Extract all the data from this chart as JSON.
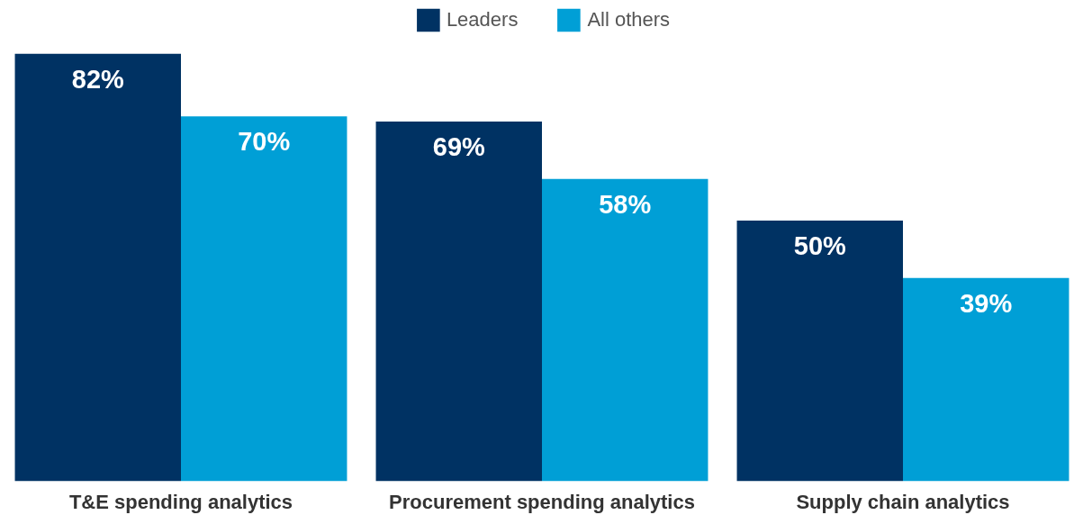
{
  "chart_data": {
    "type": "bar",
    "categories": [
      "T&E spending analytics",
      "Procurement spending analytics",
      "Supply chain analytics"
    ],
    "series": [
      {
        "name": "Leaders",
        "color": "#003263",
        "values": [
          82,
          69,
          50
        ],
        "value_labels": [
          "82%",
          "69%",
          "50%"
        ]
      },
      {
        "name": "All others",
        "color": "#009fd6",
        "values": [
          70,
          58,
          39
        ],
        "value_labels": [
          "70%",
          "58%",
          "39%"
        ]
      }
    ],
    "legend": "top",
    "grid": false
  }
}
